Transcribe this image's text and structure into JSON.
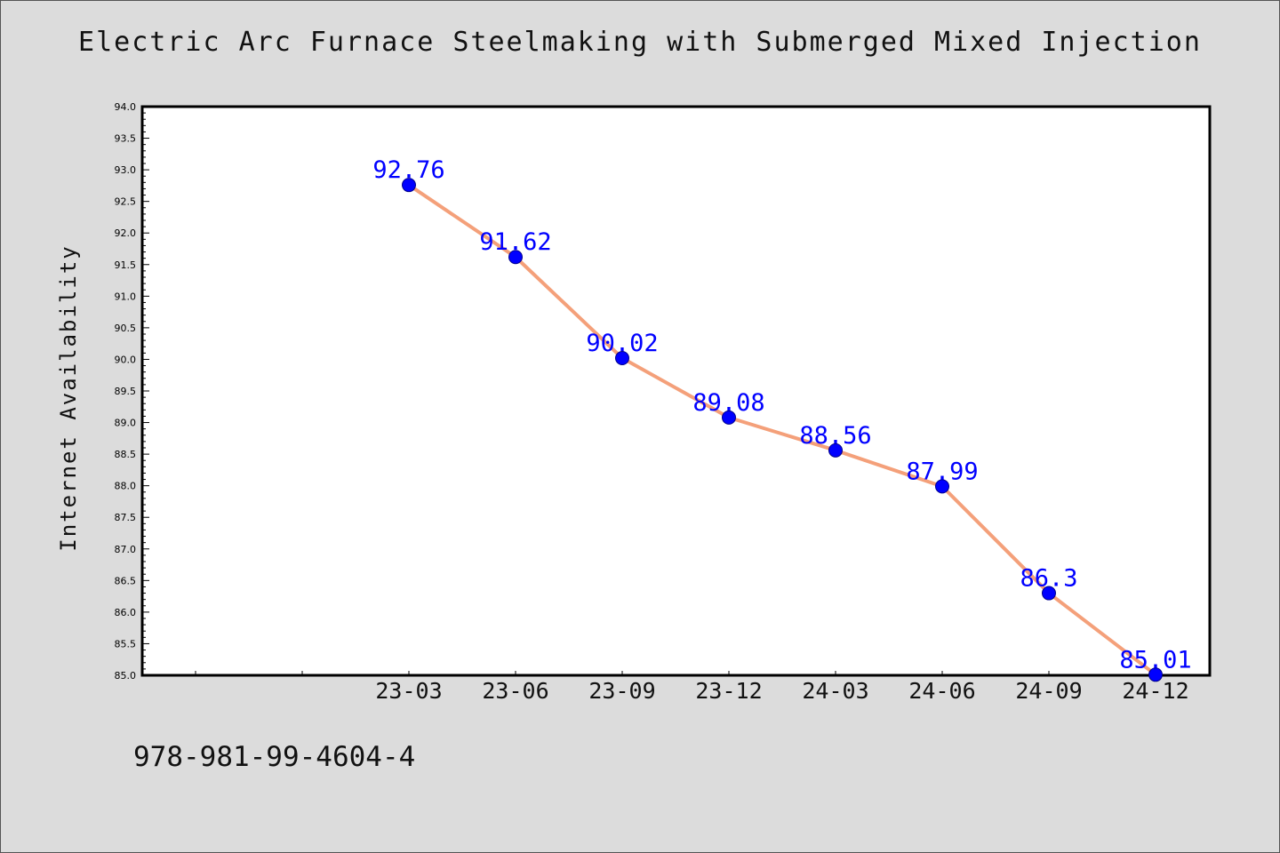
{
  "chart_data": {
    "type": "line",
    "title": "Electric Arc Furnace Steelmaking with Submerged Mixed Injection",
    "xlabel": "",
    "ylabel": "Internet Availability",
    "x": [
      "23-03",
      "23-06",
      "23-09",
      "23-12",
      "24-03",
      "24-06",
      "24-09",
      "24-12"
    ],
    "series": [
      {
        "values": [
          92.76,
          91.62,
          90.02,
          89.08,
          88.56,
          87.99,
          86.3,
          85.01
        ],
        "labels": [
          "92.76",
          "91.62",
          "90.02",
          "89.08",
          "88.56",
          "87.99",
          "86.3",
          "85.01"
        ]
      }
    ],
    "ylim": [
      85.0,
      94.0
    ],
    "yticks": [
      "85.0",
      "85.5",
      "86.0",
      "86.5",
      "87.0",
      "87.5",
      "88.0",
      "88.5",
      "89.0",
      "89.5",
      "90.0",
      "90.5",
      "91.0",
      "91.5",
      "92.0",
      "92.5",
      "93.0",
      "93.5",
      "94.0"
    ],
    "grid": false,
    "legend": "none",
    "line_color": "#f4a07a",
    "marker_color": "#0000ff",
    "label_color": "#0000ff"
  },
  "footer_text": "978-981-99-4604-4",
  "colors": {
    "background": "#dcdcdc",
    "plot_background": "#ffffff"
  }
}
